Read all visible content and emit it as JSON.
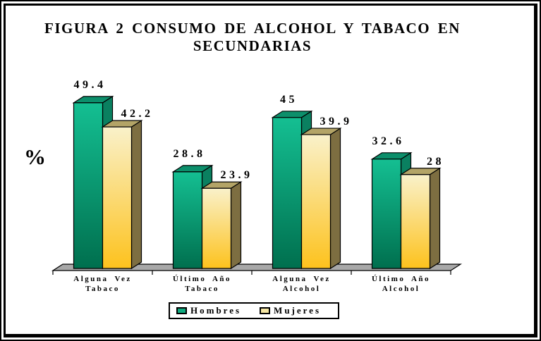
{
  "title": "FIGURA 2 CONSUMO DE ALCOHOL Y TABACO EN SECUNDARIAS",
  "ylabel": "%",
  "chart_data": {
    "type": "bar",
    "projection": "3d",
    "title": "FIGURA 2 CONSUMO DE ALCOHOL Y TABACO EN SECUNDARIAS",
    "xlabel": "",
    "ylabel": "%",
    "ylim": [
      0,
      55
    ],
    "grid": false,
    "legend_position": "bottom",
    "categories": [
      "Alguna Vez Tabaco",
      "Último Año Tabaco",
      "Alguna Vez Alcohol",
      "Último Año Alcohol"
    ],
    "category_lines": [
      [
        "Alguna Vez",
        "Tabaco"
      ],
      [
        "Último Año",
        "Tabaco"
      ],
      [
        "Alguna Vez",
        "Alcohol"
      ],
      [
        "Último Año",
        "Alcohol"
      ]
    ],
    "series": [
      {
        "name": "Hombres",
        "values": [
          49.4,
          28.8,
          45,
          32.6
        ],
        "front_top": "#14bf92",
        "front_bottom": "#006f4e",
        "top_face": "#0c8f6b",
        "side_face": "#0a8060",
        "swatch": "#10ab80"
      },
      {
        "name": "Mujeres",
        "values": [
          42.2,
          23.9,
          39.9,
          28
        ],
        "front_top": "#f9f1ca",
        "front_bottom": "#fdc21d",
        "top_face": "#b3a467",
        "side_face": "#7d6e41",
        "swatch": "#f5e6a3"
      }
    ],
    "value_labels": [
      "49.4",
      "28.8",
      "45",
      "32.6",
      "42.2",
      "23.9",
      "39.9",
      "28"
    ],
    "colors": {
      "floor": "#a8a8a8",
      "outline": "#000000",
      "background": "#ffffff"
    }
  }
}
